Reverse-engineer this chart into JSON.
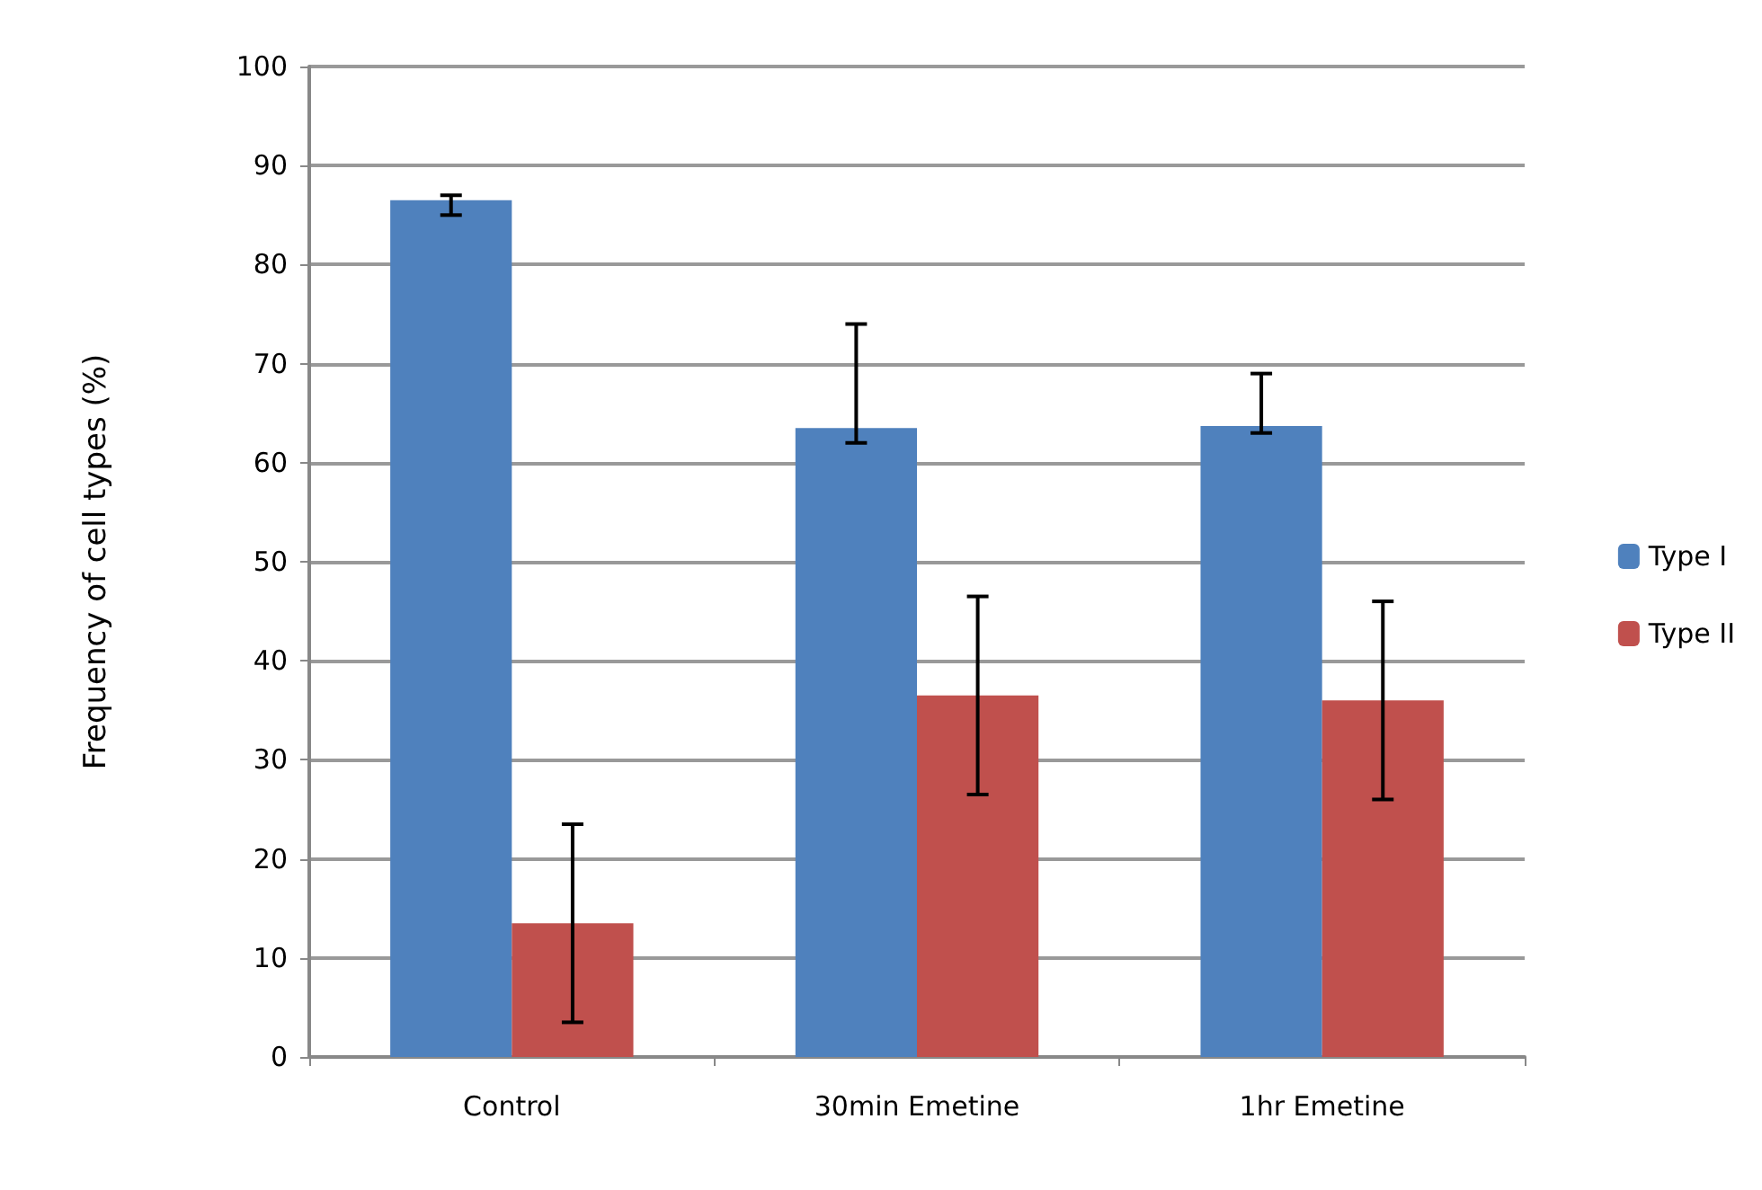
{
  "chart_data": {
    "type": "bar",
    "ylabel": "Frequency of cell types (%)",
    "categories": [
      "Control",
      "30min Emetine",
      "1hr Emetine"
    ],
    "series": [
      {
        "name": "Type I",
        "color": "#4f81bd",
        "values": [
          86.5,
          63.5,
          63.7
        ],
        "errors": [
          [
            85,
            87
          ],
          [
            62,
            74
          ],
          [
            63,
            69
          ]
        ]
      },
      {
        "name": "Type II",
        "color": "#c0504d",
        "values": [
          13.5,
          36.5,
          36
        ],
        "errors": [
          [
            3.5,
            23.5
          ],
          [
            26.5,
            46.5
          ],
          [
            26,
            46
          ]
        ]
      }
    ],
    "ylim": [
      0,
      100
    ],
    "yticks": [
      0,
      10,
      20,
      30,
      40,
      50,
      60,
      70,
      80,
      90,
      100
    ],
    "grid": "y",
    "legend": "right"
  }
}
